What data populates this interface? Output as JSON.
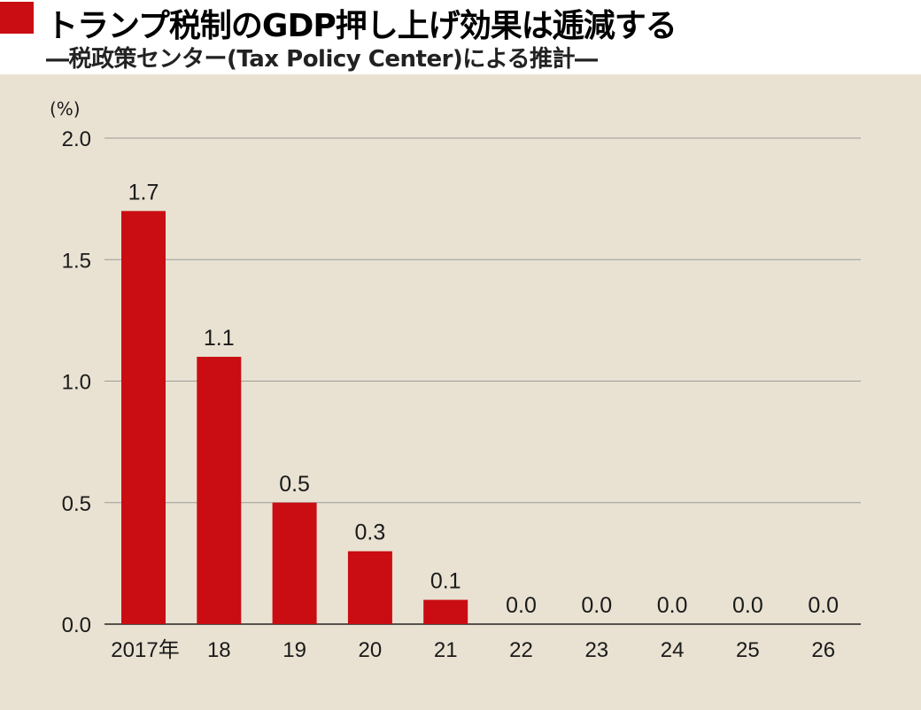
{
  "header": {
    "title": "トランプ税制のGDP押し上げ効果は逓減する",
    "subtitle": "―税政策センター(Tax Policy Center)による推計―"
  },
  "colors": {
    "bar": "#c90d12",
    "background": "#e9e2d2",
    "grid": "#9b9b9b"
  },
  "chart_data": {
    "type": "bar",
    "unit_label": "(%)",
    "categories": [
      "2017年",
      "18",
      "19",
      "20",
      "21",
      "22",
      "23",
      "24",
      "25",
      "26"
    ],
    "values": [
      1.7,
      1.1,
      0.5,
      0.3,
      0.1,
      0.0,
      0.0,
      0.0,
      0.0,
      0.0
    ],
    "value_labels": [
      "1.7",
      "1.1",
      "0.5",
      "0.3",
      "0.1",
      "0.0",
      "0.0",
      "0.0",
      "0.0",
      "0.0"
    ],
    "y_ticks": [
      "0.0",
      "0.5",
      "1.0",
      "1.5",
      "2.0"
    ],
    "ylim": [
      0,
      2.0
    ],
    "grid": true
  }
}
